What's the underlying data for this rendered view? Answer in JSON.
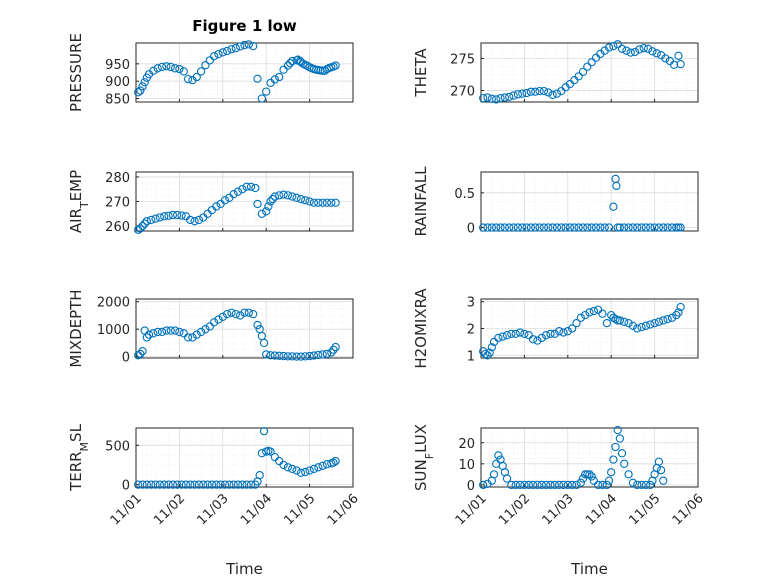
{
  "chart_data": [
    {
      "type": "scatter",
      "title": "Figure 1 low",
      "ylabel": "PRESSURE",
      "xlim": [
        0,
        5
      ],
      "ylim": [
        840,
        1010
      ],
      "yticks": [
        850,
        900,
        950
      ],
      "xticklabels": [],
      "xlabel": "",
      "series": [
        {
          "x": [
            0.05,
            0.1,
            0.15,
            0.2,
            0.25,
            0.3,
            0.4,
            0.5,
            0.6,
            0.7,
            0.8,
            0.9,
            1.0,
            1.1,
            1.2,
            1.3,
            1.4,
            1.5,
            1.6,
            1.7,
            1.8,
            1.9,
            2.0,
            2.1,
            2.2,
            2.3,
            2.4,
            2.5,
            2.6,
            2.7,
            2.8,
            2.9,
            3.0,
            3.1,
            3.2,
            3.3,
            3.4,
            3.5,
            3.55,
            3.6,
            3.7,
            3.73,
            3.78,
            3.8,
            3.85,
            3.9,
            3.95,
            4.0,
            4.05,
            4.1,
            4.15,
            4.2,
            4.25,
            4.3,
            4.35,
            4.4,
            4.45,
            4.5,
            4.55,
            4.6
          ],
          "y": [
            868,
            873,
            885,
            897,
            910,
            920,
            930,
            937,
            941,
            943,
            941,
            937,
            935,
            928,
            906,
            903,
            912,
            928,
            946,
            960,
            972,
            978,
            983,
            987,
            992,
            995,
            1000,
            1004,
            1006,
            1001,
            907,
            850,
            870,
            895,
            905,
            912,
            933,
            945,
            952,
            958,
            960,
            962,
            958,
            955,
            950,
            947,
            944,
            940,
            937,
            935,
            933,
            932,
            931,
            930,
            930,
            935,
            938,
            940,
            942,
            945
          ]
        }
      ]
    },
    {
      "type": "scatter",
      "ylabel": "THETA",
      "xlim": [
        0,
        5
      ],
      "ylim": [
        268.2,
        277.4
      ],
      "yticks": [
        270,
        275
      ],
      "xticklabels": [],
      "xlabel": "",
      "series": [
        {
          "x": [
            0.05,
            0.15,
            0.25,
            0.35,
            0.45,
            0.55,
            0.65,
            0.75,
            0.85,
            0.95,
            1.05,
            1.15,
            1.25,
            1.35,
            1.45,
            1.55,
            1.65,
            1.75,
            1.85,
            1.95,
            2.05,
            2.15,
            2.25,
            2.35,
            2.45,
            2.55,
            2.65,
            2.75,
            2.85,
            2.95,
            3.05,
            3.15,
            3.25,
            3.35,
            3.45,
            3.55,
            3.65,
            3.75,
            3.85,
            3.95,
            4.05,
            4.15,
            4.25,
            4.35,
            4.45,
            4.55,
            4.6
          ],
          "y": [
            268.8,
            268.9,
            268.7,
            268.6,
            268.8,
            268.9,
            269.0,
            269.2,
            269.4,
            269.5,
            269.6,
            269.8,
            269.8,
            269.9,
            269.9,
            269.7,
            269.3,
            269.5,
            269.9,
            270.5,
            271.0,
            271.6,
            272.2,
            272.9,
            273.7,
            274.4,
            275.1,
            275.7,
            276.2,
            276.7,
            276.9,
            277.2,
            276.5,
            276.2,
            275.9,
            276.0,
            276.4,
            276.6,
            276.5,
            276.1,
            275.8,
            275.5,
            275.0,
            274.6,
            274.0,
            275.4,
            274.1
          ]
        }
      ]
    },
    {
      "type": "scatter",
      "ylabel": "AIR_TEMP",
      "xlim": [
        0,
        5
      ],
      "ylim": [
        258,
        282
      ],
      "yticks": [
        260,
        270,
        280
      ],
      "xticklabels": [],
      "xlabel": "",
      "series": [
        {
          "x": [
            0.05,
            0.1,
            0.15,
            0.2,
            0.25,
            0.35,
            0.45,
            0.55,
            0.65,
            0.75,
            0.85,
            0.95,
            1.05,
            1.15,
            1.25,
            1.35,
            1.45,
            1.55,
            1.65,
            1.75,
            1.85,
            1.95,
            2.05,
            2.15,
            2.25,
            2.35,
            2.45,
            2.55,
            2.65,
            2.75,
            2.8,
            2.9,
            3.0,
            3.05,
            3.1,
            3.15,
            3.2,
            3.3,
            3.4,
            3.5,
            3.6,
            3.7,
            3.8,
            3.9,
            4.0,
            4.1,
            4.2,
            4.3,
            4.4,
            4.5,
            4.6
          ],
          "y": [
            258.5,
            259,
            260,
            261,
            262,
            262.5,
            263,
            263.5,
            264,
            264.2,
            264.5,
            264.5,
            264.3,
            264,
            262.5,
            262,
            262.5,
            263.5,
            265,
            266.5,
            268,
            269,
            270.5,
            271.5,
            273,
            274,
            275,
            276,
            276,
            275.5,
            269,
            265,
            266,
            268,
            270,
            271,
            272,
            272.5,
            272.8,
            272.5,
            272,
            271.5,
            271,
            270.5,
            270,
            269.5,
            269.5,
            269.5,
            269.5,
            269.5,
            269.5
          ]
        }
      ]
    },
    {
      "type": "scatter",
      "ylabel": "RAINFALL",
      "xlim": [
        0,
        5
      ],
      "ylim": [
        -0.05,
        0.8
      ],
      "yticks": [
        0,
        0.5
      ],
      "xticklabels": [],
      "xlabel": "",
      "series": [
        {
          "x": [
            0.05,
            0.15,
            0.25,
            0.35,
            0.45,
            0.55,
            0.65,
            0.75,
            0.85,
            0.95,
            1.05,
            1.15,
            1.25,
            1.35,
            1.45,
            1.55,
            1.65,
            1.75,
            1.85,
            1.95,
            2.05,
            2.15,
            2.25,
            2.35,
            2.45,
            2.55,
            2.65,
            2.75,
            2.85,
            2.95,
            3.05,
            3.1,
            3.12,
            3.15,
            3.2,
            3.3,
            3.4,
            3.5,
            3.6,
            3.7,
            3.8,
            3.9,
            4.0,
            4.1,
            4.2,
            4.3,
            4.4,
            4.5,
            4.55,
            4.6
          ],
          "y": [
            0,
            0,
            0,
            0,
            0,
            0,
            0,
            0,
            0,
            0,
            0,
            0,
            0,
            0,
            0,
            0,
            0,
            0,
            0,
            0,
            0,
            0,
            0,
            0,
            0,
            0,
            0,
            0,
            0,
            0,
            0.3,
            0.7,
            0.6,
            0,
            0,
            0,
            0,
            0,
            0,
            0,
            0,
            0,
            0,
            0,
            0,
            0,
            0,
            0,
            0,
            0
          ]
        }
      ]
    },
    {
      "type": "scatter",
      "ylabel": "MIXDEPTH",
      "xlim": [
        0,
        5
      ],
      "ylim": [
        -50,
        2100
      ],
      "yticks": [
        0,
        1000,
        2000
      ],
      "xticklabels": [],
      "xlabel": "",
      "series": [
        {
          "x": [
            0.05,
            0.1,
            0.15,
            0.2,
            0.25,
            0.3,
            0.4,
            0.5,
            0.6,
            0.7,
            0.8,
            0.9,
            1.0,
            1.1,
            1.2,
            1.3,
            1.4,
            1.5,
            1.6,
            1.7,
            1.8,
            1.9,
            2.0,
            2.1,
            2.2,
            2.3,
            2.4,
            2.5,
            2.6,
            2.7,
            2.8,
            2.85,
            2.9,
            2.95,
            3.0,
            3.1,
            3.2,
            3.3,
            3.4,
            3.5,
            3.6,
            3.7,
            3.8,
            3.9,
            4.0,
            4.1,
            4.2,
            4.3,
            4.4,
            4.5,
            4.55,
            4.6
          ],
          "y": [
            50,
            100,
            200,
            950,
            700,
            800,
            850,
            900,
            900,
            950,
            950,
            950,
            900,
            850,
            700,
            700,
            800,
            900,
            1000,
            1100,
            1250,
            1350,
            1450,
            1550,
            1600,
            1550,
            1500,
            1600,
            1600,
            1550,
            1150,
            1000,
            750,
            500,
            80,
            50,
            40,
            30,
            20,
            10,
            10,
            0,
            0,
            10,
            20,
            40,
            60,
            80,
            100,
            150,
            250,
            350
          ]
        }
      ]
    },
    {
      "type": "scatter",
      "ylabel": "H2OMIXRA",
      "xlim": [
        0,
        5
      ],
      "ylim": [
        0.9,
        3.1
      ],
      "yticks": [
        1,
        2,
        3
      ],
      "xticklabels": [],
      "xlabel": "",
      "series": [
        {
          "x": [
            0.05,
            0.1,
            0.15,
            0.2,
            0.25,
            0.3,
            0.4,
            0.5,
            0.6,
            0.7,
            0.8,
            0.9,
            1.0,
            1.1,
            1.2,
            1.3,
            1.4,
            1.5,
            1.6,
            1.7,
            1.8,
            1.9,
            2.0,
            2.1,
            2.2,
            2.3,
            2.4,
            2.5,
            2.6,
            2.7,
            2.8,
            2.9,
            3.0,
            3.05,
            3.1,
            3.15,
            3.2,
            3.3,
            3.4,
            3.5,
            3.6,
            3.7,
            3.8,
            3.9,
            4.0,
            4.1,
            4.2,
            4.3,
            4.4,
            4.5,
            4.55,
            4.6
          ],
          "y": [
            1.15,
            1.05,
            1.0,
            1.1,
            1.3,
            1.5,
            1.65,
            1.7,
            1.75,
            1.8,
            1.8,
            1.85,
            1.8,
            1.75,
            1.6,
            1.55,
            1.65,
            1.75,
            1.8,
            1.8,
            1.9,
            1.85,
            1.9,
            2.0,
            2.2,
            2.4,
            2.5,
            2.6,
            2.65,
            2.7,
            2.55,
            2.2,
            2.5,
            2.4,
            2.35,
            2.3,
            2.3,
            2.25,
            2.2,
            2.1,
            2.0,
            2.05,
            2.1,
            2.15,
            2.2,
            2.25,
            2.3,
            2.35,
            2.4,
            2.5,
            2.6,
            2.8
          ]
        }
      ]
    },
    {
      "type": "scatter",
      "ylabel": "TERR_MSL",
      "xlim": [
        0,
        5
      ],
      "ylim": [
        -30,
        720
      ],
      "yticks": [
        0,
        500
      ],
      "xticklabels": [
        "11/01",
        "11/02",
        "11/03",
        "11/04",
        "11/05",
        "11/06"
      ],
      "xlabel": "Time",
      "series": [
        {
          "x": [
            0.05,
            0.15,
            0.25,
            0.35,
            0.45,
            0.55,
            0.65,
            0.75,
            0.85,
            0.95,
            1.05,
            1.15,
            1.25,
            1.35,
            1.45,
            1.55,
            1.65,
            1.75,
            1.85,
            1.95,
            2.05,
            2.15,
            2.25,
            2.35,
            2.45,
            2.55,
            2.65,
            2.75,
            2.8,
            2.85,
            2.9,
            2.95,
            3.0,
            3.05,
            3.1,
            3.2,
            3.3,
            3.4,
            3.5,
            3.6,
            3.7,
            3.8,
            3.9,
            4.0,
            4.1,
            4.2,
            4.3,
            4.4,
            4.5,
            4.55,
            4.6
          ],
          "y": [
            0,
            0,
            0,
            0,
            0,
            0,
            0,
            0,
            0,
            0,
            0,
            0,
            0,
            0,
            0,
            0,
            0,
            0,
            0,
            0,
            0,
            0,
            0,
            0,
            0,
            0,
            0,
            0,
            40,
            120,
            400,
            680,
            420,
            430,
            420,
            350,
            300,
            250,
            220,
            200,
            180,
            150,
            160,
            180,
            200,
            220,
            240,
            260,
            270,
            280,
            300
          ]
        }
      ]
    },
    {
      "type": "scatter",
      "ylabel": "SUN_FLUX",
      "xlim": [
        0,
        5
      ],
      "ylim": [
        -1,
        27
      ],
      "yticks": [
        0,
        10,
        20
      ],
      "xticklabels": [
        "11/01",
        "11/02",
        "11/03",
        "11/04",
        "11/05",
        "11/06"
      ],
      "xlabel": "Time",
      "series": [
        {
          "x": [
            0.05,
            0.15,
            0.25,
            0.3,
            0.35,
            0.4,
            0.45,
            0.5,
            0.55,
            0.6,
            0.7,
            0.8,
            0.9,
            1.0,
            1.1,
            1.2,
            1.3,
            1.4,
            1.5,
            1.6,
            1.7,
            1.8,
            1.9,
            2.0,
            2.1,
            2.2,
            2.3,
            2.35,
            2.4,
            2.45,
            2.5,
            2.55,
            2.6,
            2.7,
            2.8,
            2.9,
            2.95,
            3.0,
            3.05,
            3.1,
            3.15,
            3.2,
            3.25,
            3.3,
            3.4,
            3.5,
            3.6,
            3.7,
            3.8,
            3.9,
            3.95,
            4.0,
            4.05,
            4.1,
            4.15,
            4.2
          ],
          "y": [
            0,
            0.5,
            2,
            5,
            10,
            14,
            12,
            9,
            6,
            3,
            0,
            0,
            0,
            0,
            0,
            0,
            0,
            0,
            0,
            0,
            0,
            0,
            0,
            0,
            0,
            0,
            1,
            3,
            5,
            5,
            5,
            4,
            2,
            0,
            0,
            0,
            2,
            6,
            12,
            18,
            26,
            22,
            15,
            10,
            5,
            1,
            0,
            0,
            0,
            0,
            2,
            5,
            8,
            11,
            7,
            2
          ]
        }
      ]
    }
  ]
}
